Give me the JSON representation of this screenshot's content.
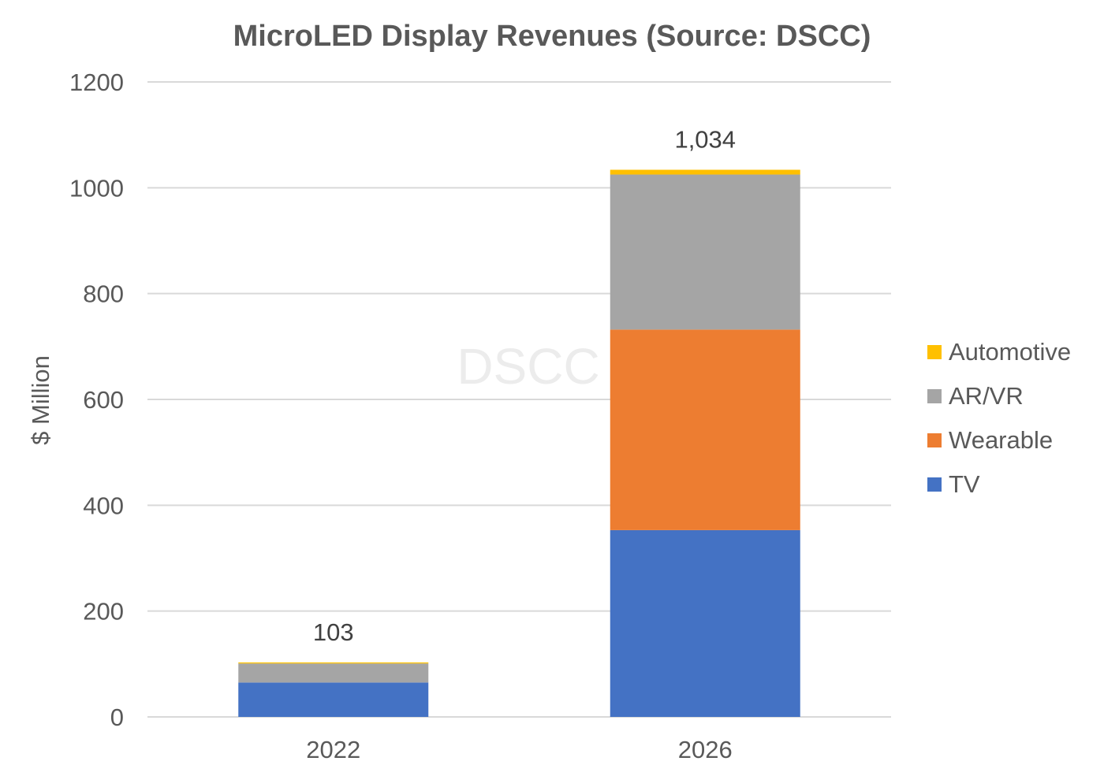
{
  "chart_data": {
    "type": "bar",
    "stacked": true,
    "title": "MicroLED Display Revenues (Source: DSCC)",
    "xlabel": "",
    "ylabel": "$ Million",
    "ylim": [
      0,
      1200
    ],
    "yticks": [
      0,
      200,
      400,
      600,
      800,
      1000,
      1200
    ],
    "categories": [
      "2022",
      "2026"
    ],
    "totals": [
      "103",
      "1,034"
    ],
    "watermark": "DSCC",
    "grid": true,
    "legend_position": "right",
    "series": [
      {
        "name": "TV",
        "color": "#4472C4",
        "values": [
          65,
          353
        ]
      },
      {
        "name": "Wearable",
        "color": "#ED7D31",
        "values": [
          0,
          379
        ]
      },
      {
        "name": "AR/VR",
        "color": "#A5A5A5",
        "values": [
          36,
          293
        ]
      },
      {
        "name": "Automotive",
        "color": "#FFC000",
        "values": [
          2,
          9
        ]
      }
    ]
  }
}
